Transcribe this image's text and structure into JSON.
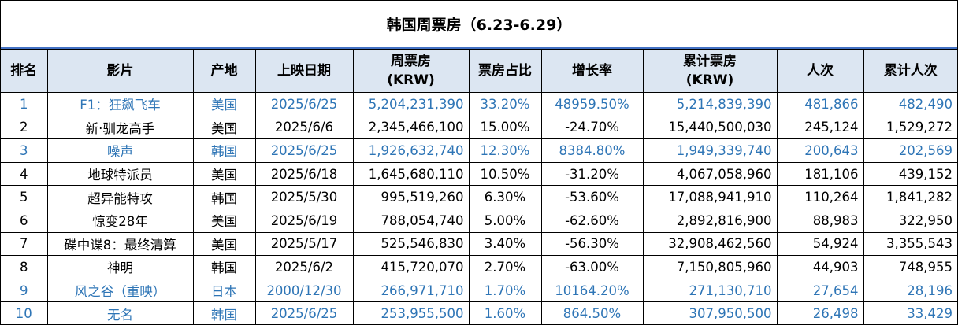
{
  "title": "韩国周票房（6.23-6.29）",
  "chart_data": {
    "type": "table",
    "columns": [
      "排名",
      "影片",
      "产地",
      "上映日期",
      "周票房\n(KRW)",
      "票房占比",
      "增长率",
      "累计票房\n(KRW)",
      "人次",
      "累计人次"
    ],
    "rows": [
      {
        "rank": "1",
        "film": "F1：狂飙飞车",
        "origin": "美国",
        "release": "2025/6/25",
        "weekly": "5,204,231,390",
        "share": "33.20%",
        "growth": "48959.50%",
        "cumulative": "5,214,839,390",
        "admissions": "481,866",
        "cum_admissions": "482,490",
        "highlight": true
      },
      {
        "rank": "2",
        "film": "新·驯龙高手",
        "origin": "美国",
        "release": "2025/6/6",
        "weekly": "2,345,466,100",
        "share": "15.00%",
        "growth": "-24.70%",
        "cumulative": "15,440,500,030",
        "admissions": "245,124",
        "cum_admissions": "1,529,272",
        "highlight": false
      },
      {
        "rank": "3",
        "film": "噪声",
        "origin": "韩国",
        "release": "2025/6/25",
        "weekly": "1,926,632,740",
        "share": "12.30%",
        "growth": "8384.80%",
        "cumulative": "1,949,339,740",
        "admissions": "200,643",
        "cum_admissions": "202,569",
        "highlight": true
      },
      {
        "rank": "4",
        "film": "地球特派员",
        "origin": "美国",
        "release": "2025/6/18",
        "weekly": "1,645,680,110",
        "share": "10.50%",
        "growth": "-31.20%",
        "cumulative": "4,067,058,960",
        "admissions": "181,106",
        "cum_admissions": "439,152",
        "highlight": false
      },
      {
        "rank": "5",
        "film": "超异能特攻",
        "origin": "韩国",
        "release": "2025/5/30",
        "weekly": "995,519,260",
        "share": "6.30%",
        "growth": "-53.60%",
        "cumulative": "17,088,941,910",
        "admissions": "110,264",
        "cum_admissions": "1,841,282",
        "highlight": false
      },
      {
        "rank": "6",
        "film": "惊变28年",
        "origin": "美国",
        "release": "2025/6/19",
        "weekly": "788,054,740",
        "share": "5.00%",
        "growth": "-62.60%",
        "cumulative": "2,892,816,900",
        "admissions": "88,983",
        "cum_admissions": "322,950",
        "highlight": false
      },
      {
        "rank": "7",
        "film": "碟中谍8：最终清算",
        "origin": "美国",
        "release": "2025/5/17",
        "weekly": "525,546,830",
        "share": "3.40%",
        "growth": "-56.30%",
        "cumulative": "32,908,462,560",
        "admissions": "54,924",
        "cum_admissions": "3,355,543",
        "highlight": false
      },
      {
        "rank": "8",
        "film": "神明",
        "origin": "韩国",
        "release": "2025/6/2",
        "weekly": "415,720,070",
        "share": "2.70%",
        "growth": "-63.00%",
        "cumulative": "7,150,805,960",
        "admissions": "44,903",
        "cum_admissions": "748,955",
        "highlight": false
      },
      {
        "rank": "9",
        "film": "风之谷（重映）",
        "origin": "日本",
        "release": "2000/12/30",
        "weekly": "266,971,710",
        "share": "1.70%",
        "growth": "10164.20%",
        "cumulative": "271,130,710",
        "admissions": "27,654",
        "cum_admissions": "28,196",
        "highlight": true
      },
      {
        "rank": "10",
        "film": "无名",
        "origin": "韩国",
        "release": "2025/6/25",
        "weekly": "253,955,500",
        "share": "1.60%",
        "growth": "864.50%",
        "cumulative": "307,950,500",
        "admissions": "26,498",
        "cum_admissions": "33,429",
        "highlight": true
      }
    ]
  },
  "colors": {
    "highlight_text": "#2e75b6",
    "header_bg": "#dce6f2",
    "title_rule": "#4472c4"
  }
}
